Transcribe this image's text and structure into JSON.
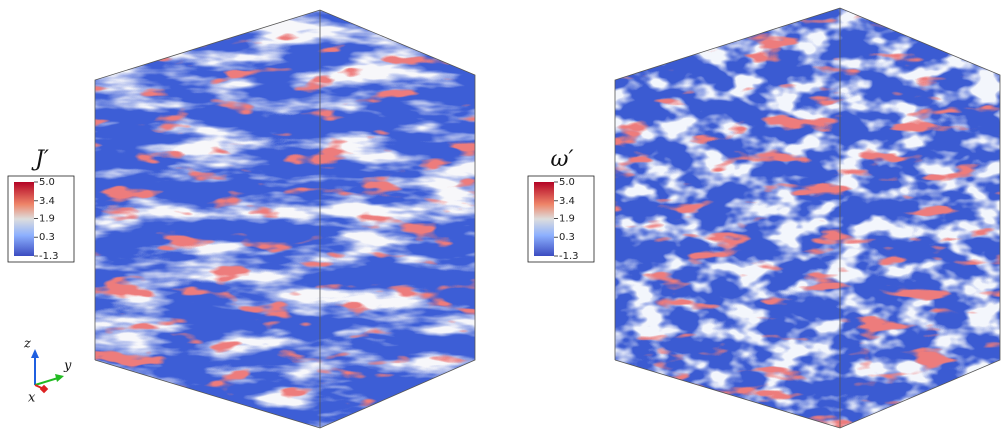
{
  "panels": [
    {
      "colorbar_title": "J′",
      "ticks": [
        {
          "value": 5.0,
          "label": "5.0"
        },
        {
          "value": 3.4,
          "label": "3.4"
        },
        {
          "value": 1.9,
          "label": "1.9"
        },
        {
          "value": 0.3,
          "label": "0.3"
        },
        {
          "value": -1.3,
          "label": "-1.3"
        }
      ]
    },
    {
      "colorbar_title": "ω′",
      "ticks": [
        {
          "value": 5.0,
          "label": "5.0"
        },
        {
          "value": 3.4,
          "label": "3.4"
        },
        {
          "value": 1.9,
          "label": "1.9"
        },
        {
          "value": 0.3,
          "label": "0.3"
        },
        {
          "value": -1.3,
          "label": "-1.3"
        }
      ]
    }
  ],
  "axes_triad": {
    "z": "z",
    "y": "y",
    "x": "x"
  }
}
